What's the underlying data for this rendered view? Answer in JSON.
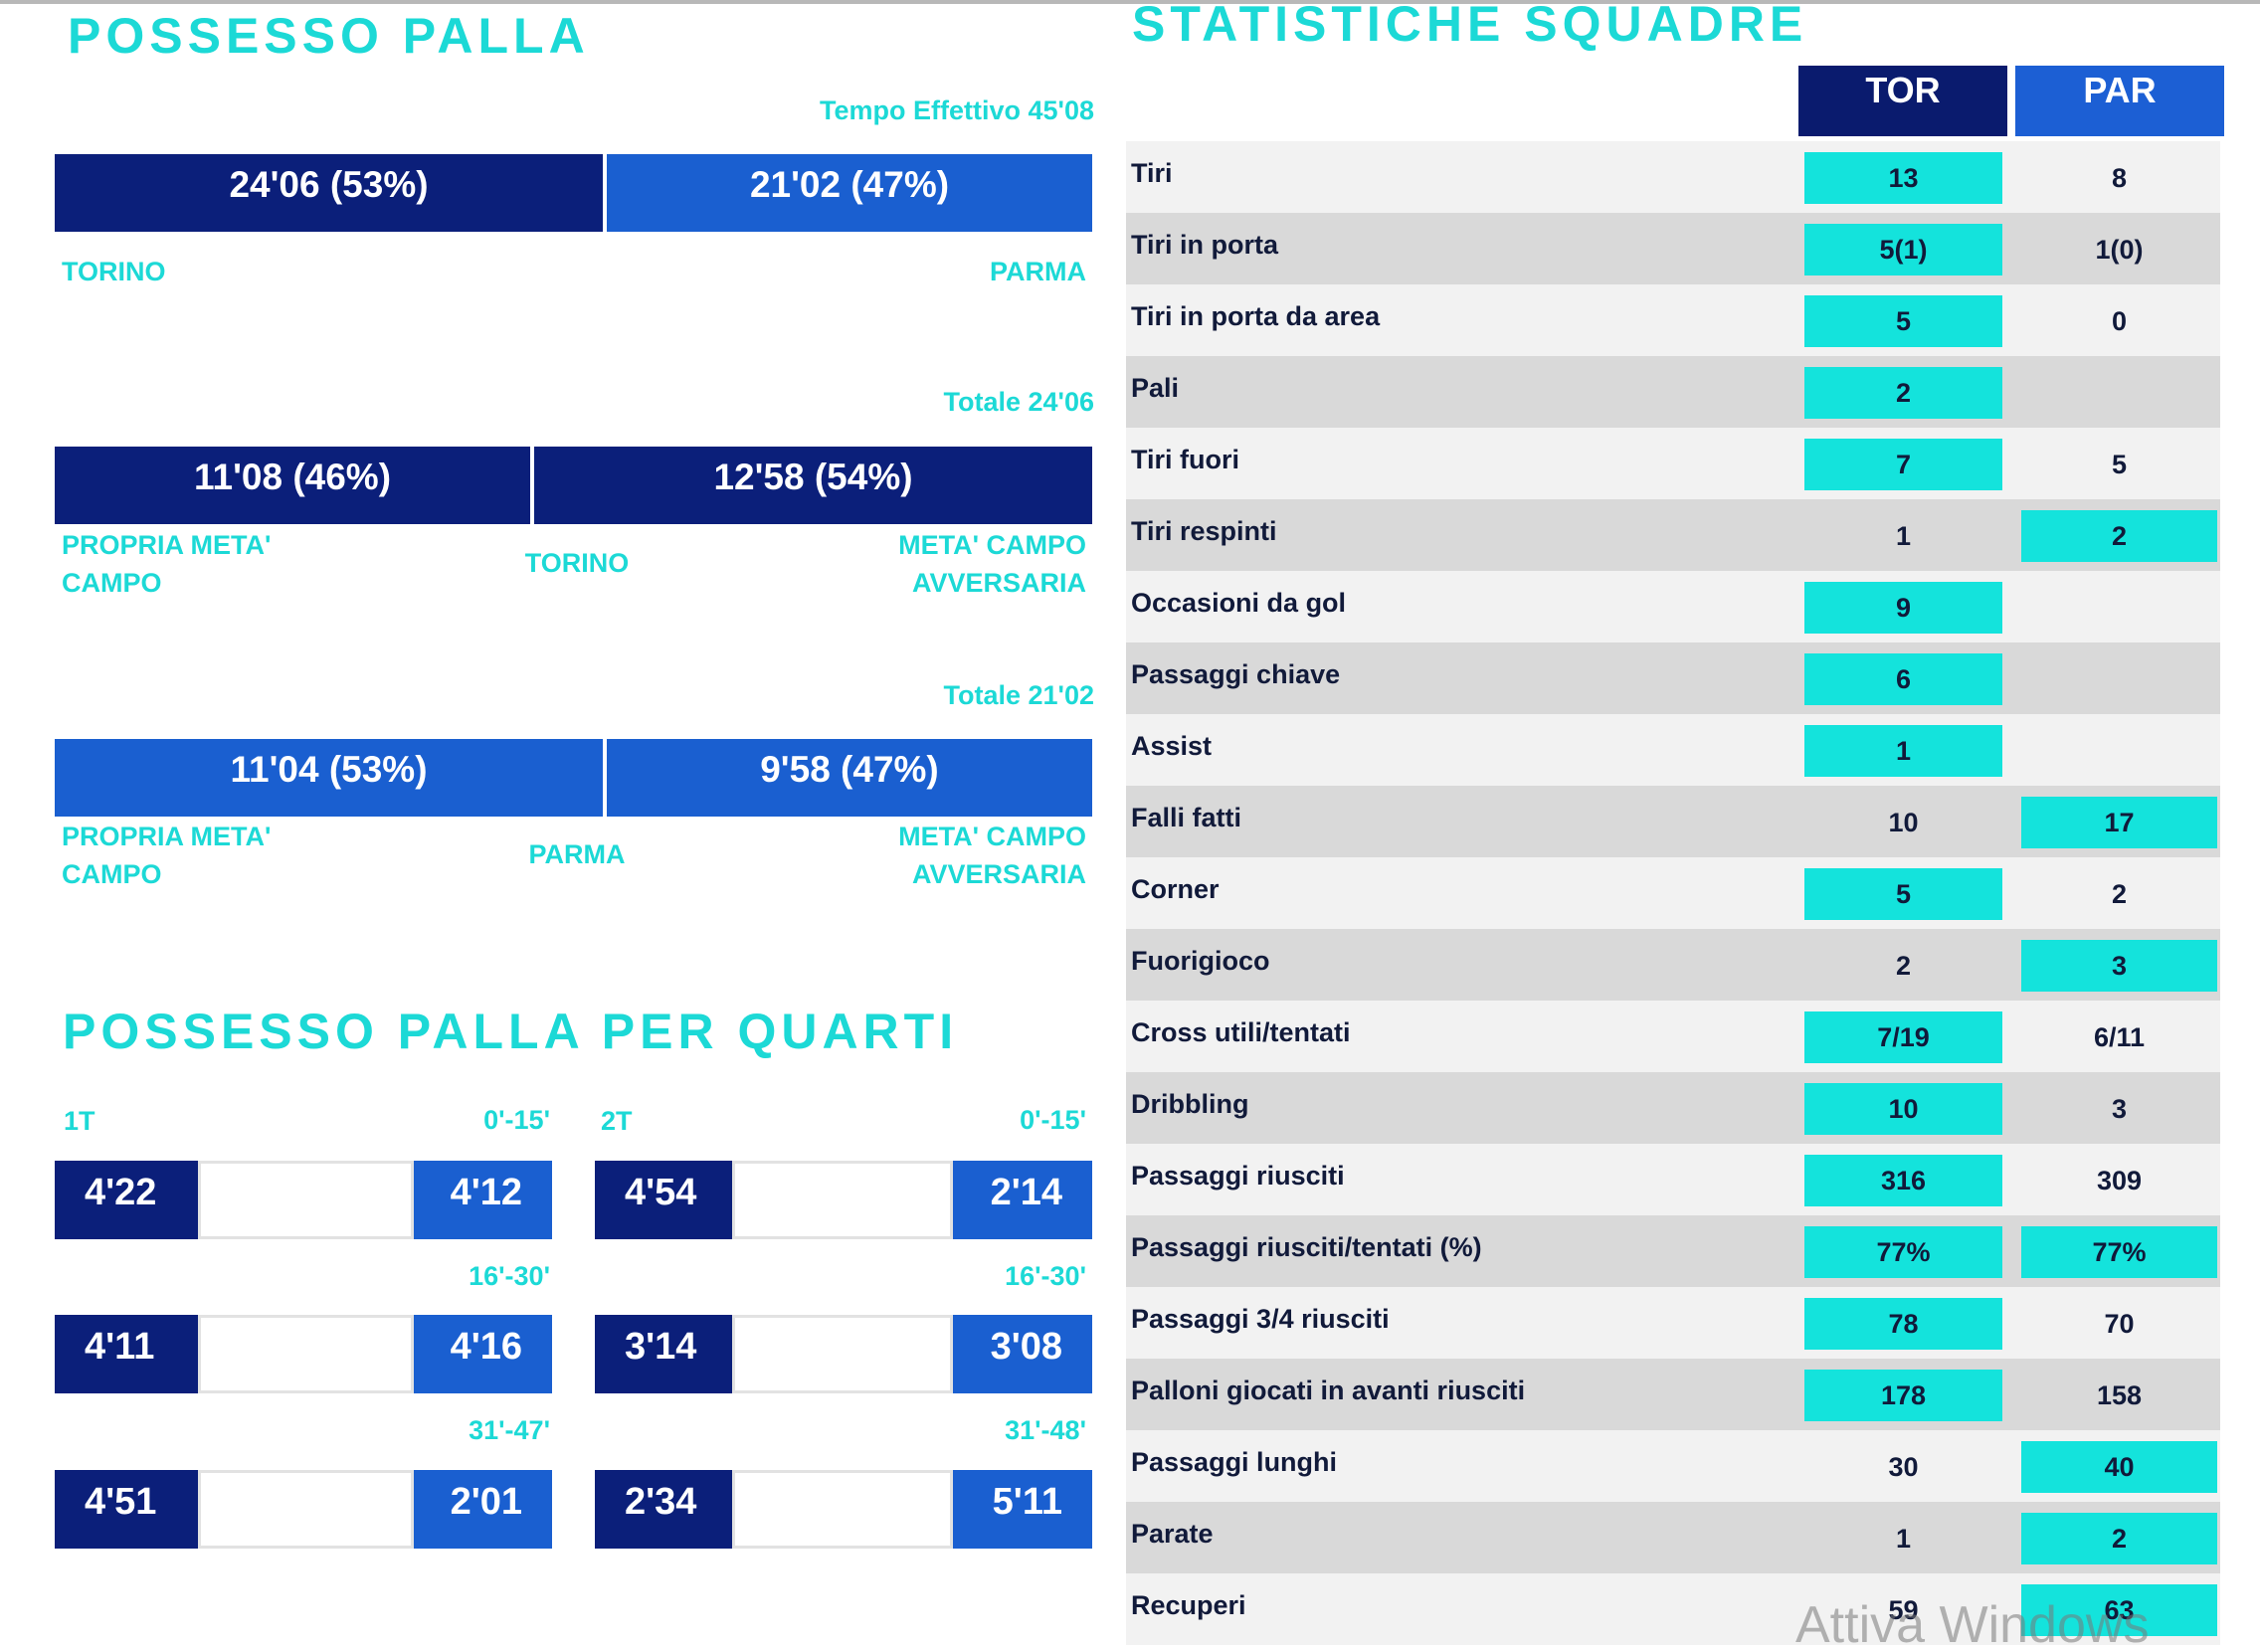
{
  "possession": {
    "title": "POSSESSO PALLA",
    "blocks": [
      {
        "note": "Tempo Effettivo 45'08",
        "left": "24'06 (53%)",
        "right": "21'02 (47%)",
        "label_left": "TORINO",
        "label_right": "PARMA"
      },
      {
        "note": "Totale 24'06",
        "left": "11'08 (46%)",
        "right": "12'58 (54%)",
        "label_left": "PROPRIA META' CAMPO",
        "label_center": "TORINO",
        "label_right": "META' CAMPO AVVERSARIA"
      },
      {
        "note": "Totale 21'02",
        "left": "11'04 (53%)",
        "right": "9'58 (47%)",
        "label_left": "PROPRIA META' CAMPO",
        "label_center": "PARMA",
        "label_right": "META' CAMPO AVVERSARIA"
      }
    ]
  },
  "quarters": {
    "title": "POSSESSO PALLA PER QUARTI",
    "halves": [
      {
        "label": "1T",
        "rows": [
          {
            "period": "0'-15'",
            "tor": "4'22",
            "par": "4'12"
          },
          {
            "period": "16'-30'",
            "tor": "4'11",
            "par": "4'16"
          },
          {
            "period": "31'-47'",
            "tor": "4'51",
            "par": "2'01"
          }
        ]
      },
      {
        "label": "2T",
        "rows": [
          {
            "period": "0'-15'",
            "tor": "4'54",
            "par": "2'14"
          },
          {
            "period": "16'-30'",
            "tor": "3'14",
            "par": "3'08"
          },
          {
            "period": "31'-48'",
            "tor": "2'34",
            "par": "5'11"
          }
        ]
      }
    ]
  },
  "stats": {
    "title": "STATISTICHE SQUADRE",
    "columns": [
      "TOR",
      "PAR"
    ],
    "rows": [
      {
        "label": "Tiri",
        "values": [
          "13",
          "8"
        ],
        "highlight": [
          true,
          false
        ]
      },
      {
        "label": "Tiri in porta",
        "values": [
          "5(1)",
          "1(0)"
        ],
        "highlight": [
          true,
          false
        ]
      },
      {
        "label": "Tiri in porta da area",
        "values": [
          "5",
          "0"
        ],
        "highlight": [
          true,
          false
        ]
      },
      {
        "label": "Pali",
        "values": [
          "2",
          null
        ],
        "highlight": [
          true,
          false
        ]
      },
      {
        "label": "Tiri fuori",
        "values": [
          "7",
          "5"
        ],
        "highlight": [
          true,
          false
        ]
      },
      {
        "label": "Tiri respinti",
        "values": [
          "1",
          "2"
        ],
        "highlight": [
          false,
          true
        ]
      },
      {
        "label": "Occasioni da gol",
        "values": [
          "9",
          null
        ],
        "highlight": [
          true,
          false
        ]
      },
      {
        "label": "Passaggi chiave",
        "values": [
          "6",
          null
        ],
        "highlight": [
          true,
          false
        ]
      },
      {
        "label": "Assist",
        "values": [
          "1",
          null
        ],
        "highlight": [
          true,
          false
        ]
      },
      {
        "label": "Falli fatti",
        "values": [
          "10",
          "17"
        ],
        "highlight": [
          false,
          true
        ]
      },
      {
        "label": "Corner",
        "values": [
          "5",
          "2"
        ],
        "highlight": [
          true,
          false
        ]
      },
      {
        "label": "Fuorigioco",
        "values": [
          "2",
          "3"
        ],
        "highlight": [
          false,
          true
        ]
      },
      {
        "label": "Cross utili/tentati",
        "values": [
          "7/19",
          "6/11"
        ],
        "highlight": [
          true,
          false
        ]
      },
      {
        "label": "Dribbling",
        "values": [
          "10",
          "3"
        ],
        "highlight": [
          true,
          false
        ]
      },
      {
        "label": "Passaggi riusciti",
        "values": [
          "316",
          "309"
        ],
        "highlight": [
          true,
          false
        ]
      },
      {
        "label": "Passaggi riusciti/tentati (%)",
        "values": [
          "77%",
          "77%"
        ],
        "highlight": [
          true,
          true
        ]
      },
      {
        "label": "Passaggi 3/4 riusciti",
        "values": [
          "78",
          "70"
        ],
        "highlight": [
          true,
          false
        ]
      },
      {
        "label": "Palloni giocati in avanti riusciti",
        "values": [
          "178",
          "158"
        ],
        "highlight": [
          true,
          false
        ]
      },
      {
        "label": "Passaggi lunghi",
        "values": [
          "30",
          "40"
        ],
        "highlight": [
          false,
          true
        ]
      },
      {
        "label": "Parate",
        "values": [
          "1",
          "2"
        ],
        "highlight": [
          false,
          true
        ]
      },
      {
        "label": "Recuperi",
        "values": [
          "59",
          "63"
        ],
        "highlight": [
          false,
          true
        ]
      }
    ]
  },
  "watermark": "Attiva Windows"
}
